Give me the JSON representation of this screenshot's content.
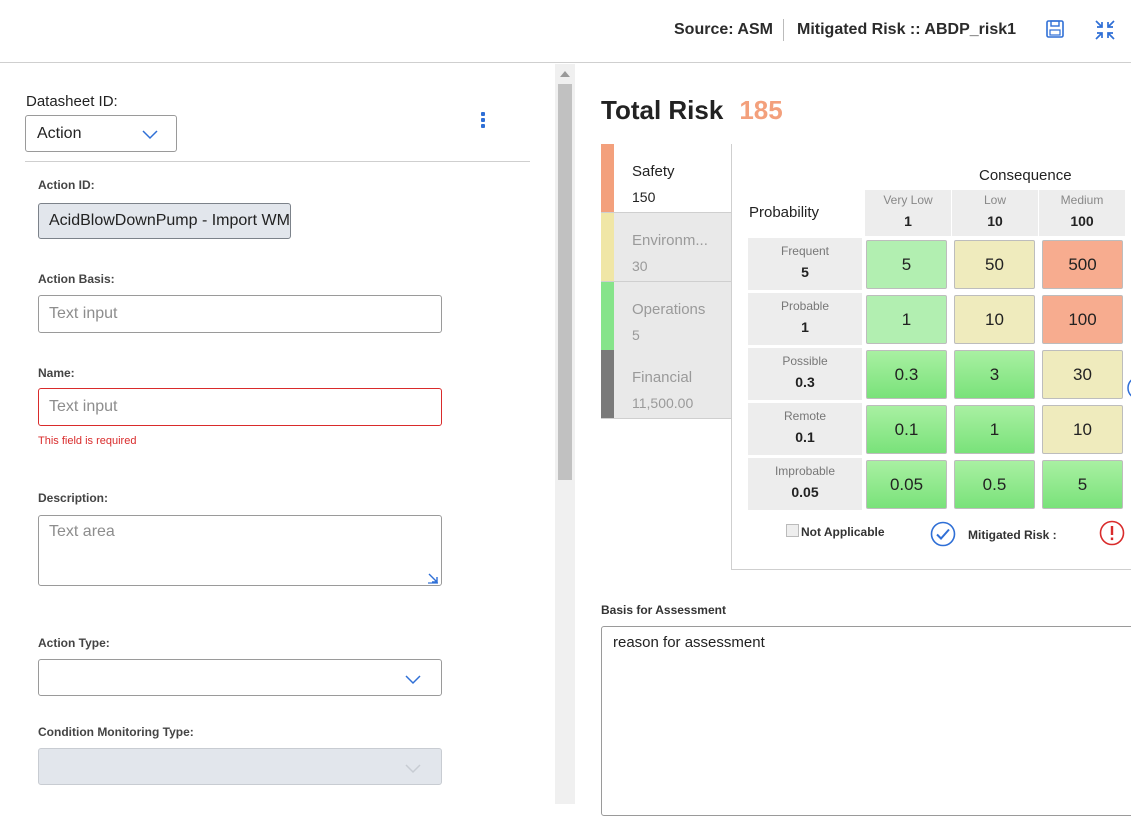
{
  "header": {
    "source": "Source: ASM",
    "mitigated_title": "Mitigated Risk :: ABDP_risk1",
    "save_icon": "save-icon",
    "collapse_icon": "collapse-icon"
  },
  "form": {
    "datasheet_label": "Datasheet ID:",
    "datasheet_value": "Action",
    "action_id_label": "Action ID:",
    "action_id_value": "AcidBlowDownPump - Import WM",
    "action_basis_label": "Action Basis:",
    "action_basis_placeholder": "Text input",
    "name_label": "Name:",
    "name_placeholder": "Text input",
    "name_error": "This field is required",
    "description_label": "Description:",
    "description_placeholder": "Text area",
    "action_type_label": "Action Type:",
    "action_type_value": "",
    "cm_type_label": "Condition Monitoring Type:",
    "cm_type_value": ""
  },
  "risk": {
    "total_label": "Total Risk",
    "total_value": "185",
    "categories": [
      {
        "name": "Safety",
        "value": "150",
        "color": "#f3a07c"
      },
      {
        "name": "Environm...",
        "value": "30",
        "color": "#f0e6a6"
      },
      {
        "name": "Operations",
        "value": "5",
        "color": "#86e48a"
      },
      {
        "name": "Financial",
        "value": "11,500.00",
        "color": "#7a7a7a"
      }
    ],
    "consequence_label": "Consequence",
    "probability_label": "Probability",
    "columns": [
      {
        "label": "Very Low",
        "value": "1"
      },
      {
        "label": "Low",
        "value": "10"
      },
      {
        "label": "Medium",
        "value": "100"
      }
    ],
    "rows": [
      {
        "label": "Frequent",
        "value": "5",
        "cells": [
          "5",
          "50",
          "500"
        ]
      },
      {
        "label": "Probable",
        "value": "1",
        "cells": [
          "1",
          "10",
          "100"
        ]
      },
      {
        "label": "Possible",
        "value": "0.3",
        "cells": [
          "0.3",
          "3",
          "30"
        ]
      },
      {
        "label": "Remote",
        "value": "0.1",
        "cells": [
          "0.1",
          "1",
          "10"
        ]
      },
      {
        "label": "Improbable",
        "value": "0.05",
        "cells": [
          "0.05",
          "0.5",
          "5"
        ]
      }
    ],
    "not_applicable_label": "Not Applicable",
    "mitigated_risk_label": "Mitigated Risk :",
    "basis_label": "Basis for Assessment",
    "basis_value": "reason for assessment"
  }
}
